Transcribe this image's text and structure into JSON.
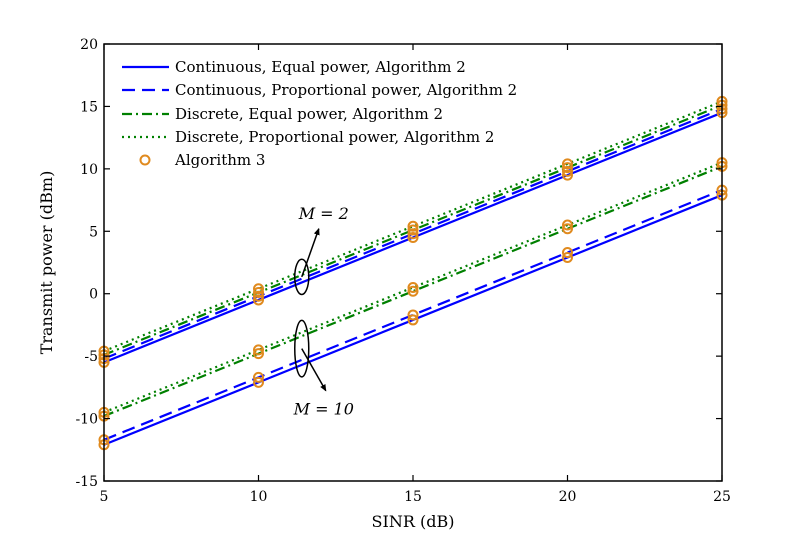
{
  "chart_data": {
    "type": "line",
    "title": "",
    "xlabel": "SINR (dB)",
    "ylabel": "Transmit power (dBm)",
    "xlim": [
      5,
      25
    ],
    "ylim": [
      -15,
      20
    ],
    "xticks": [
      5,
      10,
      15,
      20,
      25
    ],
    "xtick_labels": [
      "5",
      "10",
      "15",
      "20",
      "25"
    ],
    "yticks": [
      -15,
      -10,
      -5,
      0,
      5,
      10,
      15,
      20
    ],
    "ytick_labels": [
      "-15",
      "-10",
      "-5",
      "0",
      "5",
      "10",
      "15",
      "20"
    ],
    "grid": false,
    "legend_position": "top-left",
    "x": [
      5,
      10,
      15,
      20,
      25
    ],
    "series": [
      {
        "name": "Continuous, Equal power, Algorithm 2",
        "group": "M=2",
        "style": "solid",
        "color": "#0000ff",
        "values": [
          -5.5,
          -0.5,
          4.5,
          9.5,
          14.5
        ]
      },
      {
        "name": "Continuous, Proportional power, Algorithm 2",
        "group": "M=2",
        "style": "dashed",
        "color": "#0000ff",
        "values": [
          -5.2,
          -0.2,
          4.8,
          9.8,
          14.8
        ]
      },
      {
        "name": "Discrete, Equal power, Algorithm 2",
        "group": "M=2",
        "style": "dashdot",
        "color": "#008000",
        "values": [
          -4.9,
          0.1,
          5.1,
          10.1,
          15.1
        ]
      },
      {
        "name": "Discrete, Proportional power, Algorithm 2",
        "group": "M=2",
        "style": "dotted",
        "color": "#008000",
        "values": [
          -4.6,
          0.4,
          5.4,
          10.4,
          15.4
        ]
      },
      {
        "name": "Continuous, Equal power, Algorithm 2",
        "group": "M=10",
        "style": "solid",
        "color": "#0000ff",
        "values": [
          -12.1,
          -7.1,
          -2.1,
          2.9,
          7.9
        ]
      },
      {
        "name": "Continuous, Proportional power, Algorithm 2",
        "group": "M=10",
        "style": "dashed",
        "color": "#0000ff",
        "values": [
          -11.7,
          -6.7,
          -1.7,
          3.3,
          8.3
        ]
      },
      {
        "name": "Discrete, Equal power, Algorithm 2",
        "group": "M=10",
        "style": "dashdot",
        "color": "#008000",
        "values": [
          -9.8,
          -4.8,
          0.2,
          5.2,
          10.2
        ]
      },
      {
        "name": "Discrete, Proportional power, Algorithm 2",
        "group": "M=10",
        "style": "dotted",
        "color": "#008000",
        "values": [
          -9.5,
          -4.5,
          0.5,
          5.5,
          10.5
        ]
      }
    ],
    "markers": {
      "name": "Algorithm 3",
      "color": "#e08a1e",
      "note": "Algorithm 3 circles overlay every series at each x value"
    },
    "legend": [
      {
        "label": "Continuous, Equal power, Algorithm 2",
        "style": "solid",
        "color": "#0000ff"
      },
      {
        "label": "Continuous, Proportional power, Algorithm 2",
        "style": "dashed",
        "color": "#0000ff"
      },
      {
        "label": "Discrete, Equal power, Algorithm 2",
        "style": "dashdot",
        "color": "#008000"
      },
      {
        "label": "Discrete, Proportional power, Algorithm 2",
        "style": "dotted",
        "color": "#008000"
      },
      {
        "label": "Algorithm 3",
        "style": "marker-circle",
        "color": "#e08a1e"
      }
    ],
    "annotations": [
      {
        "label": "M = 2",
        "group": "M=2",
        "at_x": 11.4
      },
      {
        "label": "M = 10",
        "group": "M=10",
        "at_x": 11.4
      }
    ]
  }
}
